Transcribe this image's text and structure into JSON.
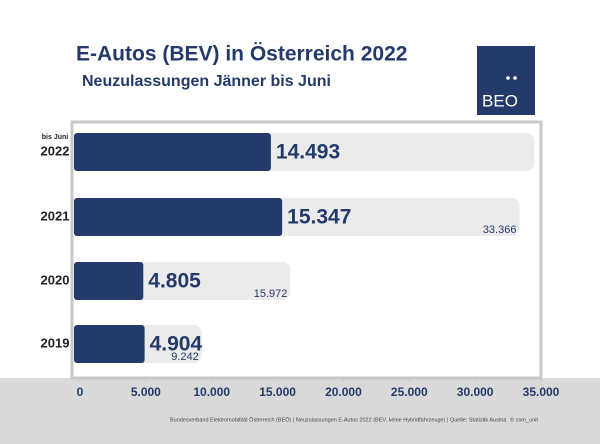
{
  "chart_data": {
    "type": "hbar-overlay",
    "title": "E-Autos (BEV) in Österreich 2022",
    "subtitle": "Neuzulassungen Jänner bis Juni",
    "annotation": "bis Juni",
    "logo": "BEO",
    "footer": "Bundesverband Elektromobilität Österreich (BEÖ) | Neuzulassungen E-Autos 2022 (BEV, keine Hybridfahrzeuge) | Quelle: Statistik Austria",
    "credit": "© com_unit",
    "categories": [
      "2022",
      "2021",
      "2020",
      "2019"
    ],
    "series": [
      {
        "color": "#ebebeb",
        "values": [
          34500,
          33366,
          15972,
          9242
        ],
        "value_labels": [
          null,
          "33.366",
          "15.972",
          "9.242"
        ]
      },
      {
        "color": "#233a6b",
        "values": [
          14493,
          15347,
          4805,
          4904
        ],
        "value_labels": [
          "14.493",
          "15.347",
          "4.805",
          "4.904"
        ]
      }
    ],
    "xlim": [
      0,
      35000
    ],
    "xticks": [
      0,
      {
        "value": 5000,
        "label": "5.000"
      },
      {
        "value": 10000,
        "label": "10.000"
      },
      {
        "value": 15000,
        "label": "15.000"
      },
      {
        "value": 20000,
        "label": "20.000"
      },
      {
        "value": 25000,
        "label": "25.000"
      },
      {
        "value": 30000,
        "label": "30.000"
      },
      {
        "value": 35000,
        "label": "35.000"
      }
    ]
  }
}
